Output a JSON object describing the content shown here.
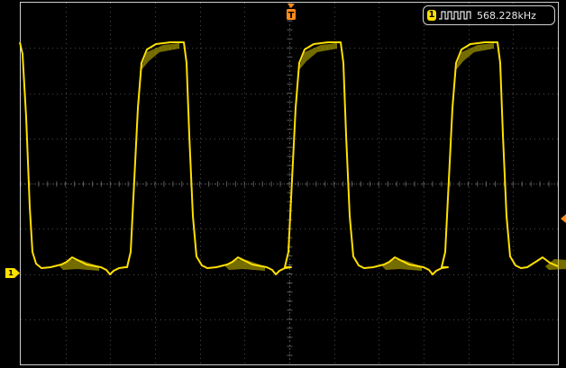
{
  "frequency_readout": {
    "channel": "1",
    "value": "568.228kHz"
  },
  "channel_marker": {
    "label": "1"
  },
  "colors": {
    "trace": "#ffe000",
    "grid": "#4a4a4a",
    "trigger": "#ff8c1a",
    "border": "#cfcfcf",
    "background": "#000000"
  },
  "icons": {
    "readout": "square-wave-icon",
    "trigger_time": "trigger-position-icon",
    "trigger_level": "trigger-level-icon"
  }
}
